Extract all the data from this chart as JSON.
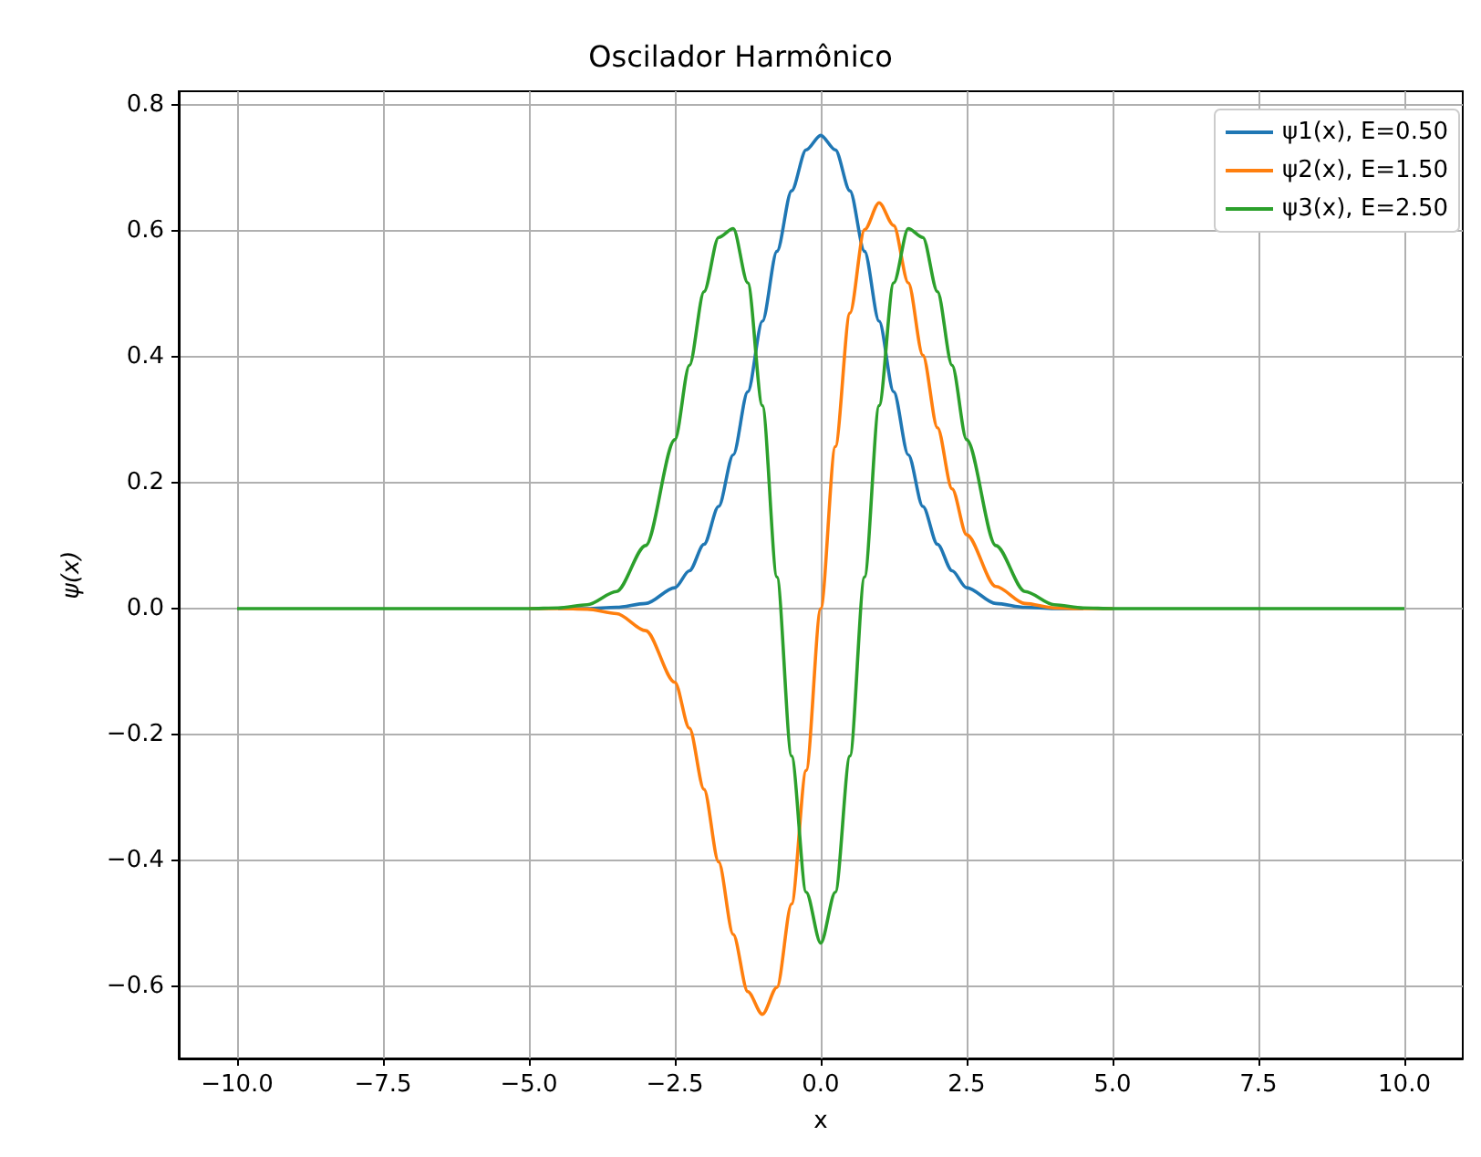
{
  "chart_data": {
    "type": "line",
    "title": "Oscilador Harmônico",
    "xlabel": "x",
    "ylabel": "ψ(x)",
    "x": [
      -10,
      -6,
      -5,
      -4.5,
      -4,
      -3.5,
      -3,
      -2.5,
      -2.25,
      -2,
      -1.75,
      -1.5,
      -1.25,
      -1,
      -0.75,
      -0.5,
      -0.25,
      0,
      0.25,
      0.5,
      0.75,
      1,
      1.25,
      1.5,
      1.75,
      2,
      2.25,
      2.5,
      3,
      3.5,
      4,
      4.5,
      5,
      6,
      10
    ],
    "series": [
      {
        "name": "ψ1(x), E=0.50",
        "color": "#1f77b4",
        "values": [
          null,
          null,
          null,
          0,
          0,
          0.002,
          0.008,
          0.033,
          0.06,
          0.102,
          0.162,
          0.244,
          0.344,
          0.456,
          0.567,
          0.663,
          0.728,
          0.751,
          0.728,
          0.663,
          0.567,
          0.456,
          0.344,
          0.244,
          0.162,
          0.102,
          0.06,
          0.033,
          0.008,
          0.002,
          0,
          0,
          null,
          null,
          null
        ]
      },
      {
        "name": "ψ2(x), E=1.50",
        "color": "#ff7f0e",
        "values": [
          null,
          null,
          0,
          0,
          -0.001,
          -0.008,
          -0.035,
          -0.117,
          -0.19,
          -0.287,
          -0.402,
          -0.517,
          -0.608,
          -0.644,
          -0.601,
          -0.469,
          -0.257,
          0,
          0.257,
          0.469,
          0.601,
          0.644,
          0.608,
          0.517,
          0.402,
          0.287,
          0.19,
          0.117,
          0.035,
          0.008,
          0.001,
          0,
          0,
          null,
          null
        ]
      },
      {
        "name": "ψ3(x), E=2.50",
        "color": "#2ca02c",
        "values": [
          0,
          0,
          0,
          0.001,
          0.006,
          0.027,
          0.1,
          0.268,
          0.386,
          0.503,
          0.589,
          0.603,
          0.517,
          0.322,
          0.05,
          -0.234,
          -0.45,
          -0.531,
          -0.45,
          -0.234,
          0.05,
          0.322,
          0.517,
          0.603,
          0.589,
          0.503,
          0.386,
          0.268,
          0.1,
          0.027,
          0.006,
          0.001,
          0,
          0,
          0
        ]
      }
    ],
    "xlim": [
      -11,
      11
    ],
    "ylim": [
      -0.714,
      0.821
    ],
    "xticks": [
      {
        "value": -10,
        "label": "−10.0"
      },
      {
        "value": -7.5,
        "label": "−7.5"
      },
      {
        "value": -5,
        "label": "−5.0"
      },
      {
        "value": -2.5,
        "label": "−2.5"
      },
      {
        "value": 0,
        "label": "0.0"
      },
      {
        "value": 2.5,
        "label": "2.5"
      },
      {
        "value": 5,
        "label": "5.0"
      },
      {
        "value": 7.5,
        "label": "7.5"
      },
      {
        "value": 10,
        "label": "10.0"
      }
    ],
    "yticks": [
      {
        "value": -0.6,
        "label": "−0.6"
      },
      {
        "value": -0.4,
        "label": "−0.4"
      },
      {
        "value": -0.2,
        "label": "−0.2"
      },
      {
        "value": 0,
        "label": "0.0"
      },
      {
        "value": 0.2,
        "label": "0.2"
      },
      {
        "value": 0.4,
        "label": "0.4"
      },
      {
        "value": 0.6,
        "label": "0.6"
      },
      {
        "value": 0.8,
        "label": "0.8"
      }
    ],
    "grid": true,
    "legend": "top right"
  }
}
